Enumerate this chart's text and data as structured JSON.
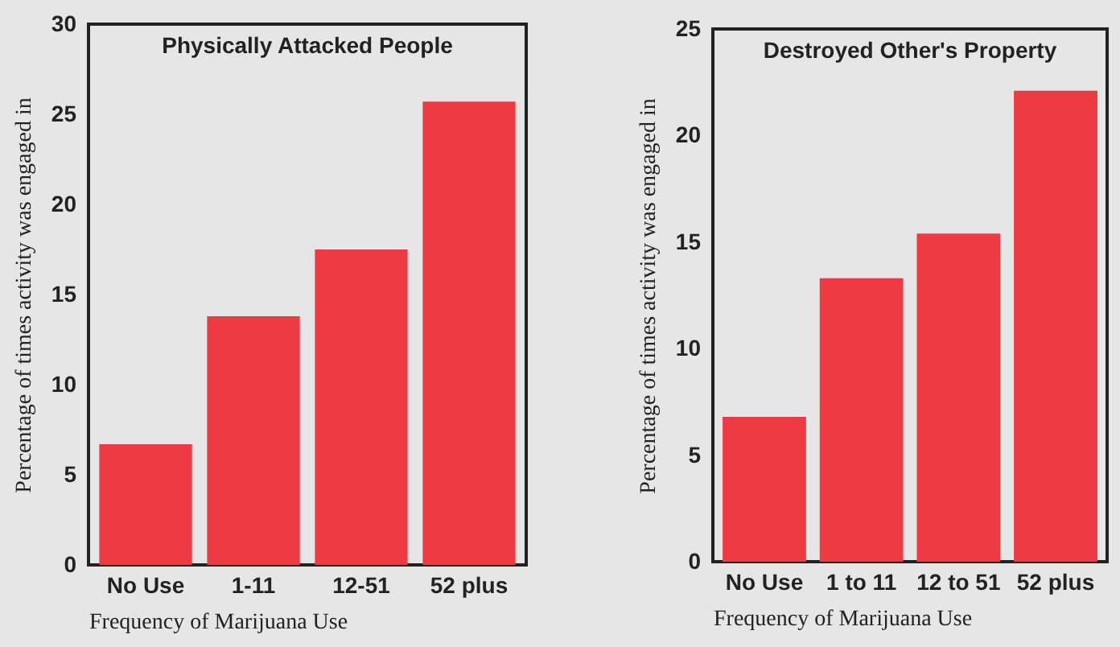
{
  "chart_data": [
    {
      "type": "bar",
      "title": "Physically Attacked People",
      "xlabel": "Frequency of Marijuana Use",
      "ylabel": "Percentage of times activity was engaged in",
      "categories": [
        "No Use",
        "1-11",
        "12-51",
        "52 plus"
      ],
      "values": [
        6.7,
        13.8,
        17.5,
        25.7
      ],
      "color": "#ee3a43",
      "ylim": [
        0,
        30
      ],
      "yticks": [
        0,
        5,
        10,
        15,
        20,
        25,
        30
      ],
      "grid": false
    },
    {
      "type": "bar",
      "title": "Destroyed Other's Property",
      "xlabel": "Frequency of Marijuana Use",
      "ylabel": "Percentage of times activity was engaged in",
      "categories": [
        "No Use",
        "1 to 11",
        "12 to 51",
        "52 plus"
      ],
      "values": [
        6.8,
        13.3,
        15.4,
        22.1
      ],
      "color": "#ee3a43",
      "ylim": [
        0,
        25
      ],
      "yticks": [
        0,
        5,
        10,
        15,
        20,
        25
      ],
      "grid": false
    }
  ]
}
